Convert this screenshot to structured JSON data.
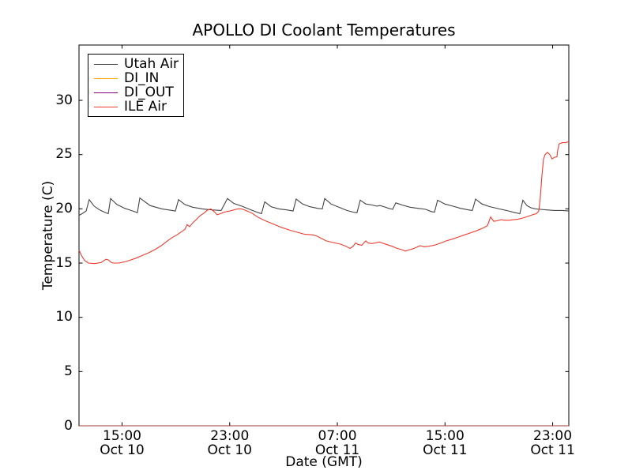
{
  "figure": {
    "background": "#ffffff",
    "spine_color": "#000000",
    "text_color": "#000000"
  },
  "chart_data": {
    "type": "line",
    "title": "APOLLO DI Coolant Temperatures",
    "xlabel": "Date (GMT)",
    "ylabel": "Temperature (C)",
    "grid": false,
    "legend_position": "upper left",
    "x_unit": "hours since Oct 10 00:00 GMT",
    "xlim": [
      11.8,
      48.2
    ],
    "ylim": [
      0,
      35.1
    ],
    "yticks": [
      0,
      5,
      10,
      15,
      20,
      25,
      30
    ],
    "xticks": [
      {
        "value": 15,
        "time": "15:00",
        "date": "Oct 10"
      },
      {
        "value": 23,
        "time": "23:00",
        "date": "Oct 10"
      },
      {
        "value": 31,
        "time": "07:00",
        "date": "Oct 11"
      },
      {
        "value": 39,
        "time": "15:00",
        "date": "Oct 11"
      },
      {
        "value": 47,
        "time": "23:00",
        "date": "Oct 11"
      }
    ],
    "series": [
      {
        "name": "Utah Air",
        "color": "#444444",
        "opacity": 1,
        "points": [
          [
            11.8,
            19.4
          ],
          [
            12.03,
            19.55
          ],
          [
            12.33,
            19.8
          ],
          [
            12.56,
            20.85
          ],
          [
            12.92,
            20.25
          ],
          [
            13.33,
            19.9
          ],
          [
            13.68,
            19.7
          ],
          [
            13.97,
            19.55
          ],
          [
            14.15,
            20.95
          ],
          [
            14.62,
            20.4
          ],
          [
            15.2,
            20.05
          ],
          [
            15.67,
            19.85
          ],
          [
            16.03,
            19.7
          ],
          [
            16.14,
            19.65
          ],
          [
            16.32,
            21.0
          ],
          [
            17.08,
            20.3
          ],
          [
            17.96,
            20.0
          ],
          [
            18.73,
            19.85
          ],
          [
            18.96,
            19.8
          ],
          [
            19.2,
            20.85
          ],
          [
            19.67,
            20.4
          ],
          [
            20.25,
            20.15
          ],
          [
            20.96,
            20.0
          ],
          [
            21.66,
            19.9
          ],
          [
            22.36,
            19.85
          ],
          [
            22.83,
            20.95
          ],
          [
            23.31,
            20.5
          ],
          [
            23.89,
            20.25
          ],
          [
            24.48,
            19.95
          ],
          [
            25.01,
            19.7
          ],
          [
            25.36,
            19.55
          ],
          [
            25.6,
            20.65
          ],
          [
            26.07,
            20.2
          ],
          [
            26.65,
            20.0
          ],
          [
            27.24,
            19.9
          ],
          [
            27.71,
            19.8
          ],
          [
            27.94,
            20.9
          ],
          [
            28.41,
            20.45
          ],
          [
            28.94,
            20.2
          ],
          [
            29.53,
            20.05
          ],
          [
            29.88,
            20.0
          ],
          [
            30.06,
            20.95
          ],
          [
            30.53,
            20.45
          ],
          [
            31.11,
            20.15
          ],
          [
            31.7,
            19.85
          ],
          [
            32.17,
            19.7
          ],
          [
            32.46,
            19.65
          ],
          [
            32.7,
            20.8
          ],
          [
            33.11,
            20.45
          ],
          [
            33.58,
            20.35
          ],
          [
            33.93,
            20.25
          ],
          [
            34.17,
            20.3
          ],
          [
            34.46,
            20.2
          ],
          [
            34.81,
            20.05
          ],
          [
            35.11,
            19.95
          ],
          [
            35.34,
            20.55
          ],
          [
            35.81,
            20.35
          ],
          [
            36.4,
            20.15
          ],
          [
            36.98,
            20.05
          ],
          [
            37.57,
            19.95
          ],
          [
            37.98,
            19.75
          ],
          [
            38.22,
            19.7
          ],
          [
            38.45,
            20.8
          ],
          [
            38.98,
            20.45
          ],
          [
            39.57,
            20.25
          ],
          [
            40.15,
            20.05
          ],
          [
            40.74,
            19.9
          ],
          [
            41.03,
            19.85
          ],
          [
            41.27,
            20.9
          ],
          [
            41.74,
            20.45
          ],
          [
            42.33,
            20.2
          ],
          [
            43.03,
            20.0
          ],
          [
            43.73,
            19.8
          ],
          [
            44.21,
            19.65
          ],
          [
            44.56,
            19.55
          ],
          [
            44.79,
            20.8
          ],
          [
            45.08,
            20.3
          ],
          [
            45.38,
            20.1
          ],
          [
            45.73,
            20.0
          ],
          [
            46.08,
            19.95
          ],
          [
            46.55,
            19.9
          ],
          [
            47.14,
            19.85
          ],
          [
            47.73,
            19.85
          ],
          [
            48.2,
            19.8
          ]
        ]
      },
      {
        "name": "DI_IN",
        "color": "#ffa500",
        "opacity": 0.8,
        "points": [
          [
            11.8,
            0
          ],
          [
            48.2,
            0
          ]
        ]
      },
      {
        "name": "DI_OUT",
        "color": "#800080",
        "opacity": 0.5,
        "points": [
          [
            11.8,
            0
          ],
          [
            48.2,
            0
          ]
        ]
      },
      {
        "name": "ILE Air",
        "color": "#ee3b30",
        "opacity": 1,
        "points": [
          [
            11.8,
            16.2
          ],
          [
            11.98,
            15.7
          ],
          [
            12.21,
            15.25
          ],
          [
            12.5,
            15.0
          ],
          [
            12.97,
            14.95
          ],
          [
            13.44,
            15.05
          ],
          [
            13.8,
            15.35
          ],
          [
            13.97,
            15.3
          ],
          [
            14.21,
            15.05
          ],
          [
            14.38,
            15.0
          ],
          [
            14.74,
            15.0
          ],
          [
            15.15,
            15.1
          ],
          [
            15.56,
            15.25
          ],
          [
            16.03,
            15.45
          ],
          [
            16.5,
            15.7
          ],
          [
            16.97,
            15.95
          ],
          [
            17.44,
            16.25
          ],
          [
            17.91,
            16.6
          ],
          [
            18.32,
            17.0
          ],
          [
            18.73,
            17.35
          ],
          [
            19.08,
            17.6
          ],
          [
            19.37,
            17.85
          ],
          [
            19.67,
            18.1
          ],
          [
            19.84,
            18.55
          ],
          [
            20.02,
            18.35
          ],
          [
            20.25,
            18.7
          ],
          [
            20.55,
            19.05
          ],
          [
            20.78,
            19.35
          ],
          [
            21.08,
            19.6
          ],
          [
            21.31,
            19.85
          ],
          [
            21.6,
            20.0
          ],
          [
            21.84,
            19.75
          ],
          [
            22.07,
            19.45
          ],
          [
            22.31,
            19.55
          ],
          [
            22.6,
            19.7
          ],
          [
            23.01,
            19.8
          ],
          [
            23.31,
            19.9
          ],
          [
            23.6,
            20.0
          ],
          [
            23.89,
            20.0
          ],
          [
            24.19,
            19.85
          ],
          [
            24.66,
            19.6
          ],
          [
            25.07,
            19.25
          ],
          [
            25.65,
            18.9
          ],
          [
            26.24,
            18.6
          ],
          [
            26.83,
            18.3
          ],
          [
            27.42,
            18.05
          ],
          [
            28.0,
            17.85
          ],
          [
            28.59,
            17.65
          ],
          [
            29.18,
            17.6
          ],
          [
            29.47,
            17.5
          ],
          [
            29.76,
            17.3
          ],
          [
            30.17,
            17.05
          ],
          [
            30.64,
            16.9
          ],
          [
            31.23,
            16.75
          ],
          [
            31.64,
            16.55
          ],
          [
            31.94,
            16.35
          ],
          [
            32.17,
            16.55
          ],
          [
            32.35,
            16.85
          ],
          [
            32.58,
            16.7
          ],
          [
            32.82,
            16.65
          ],
          [
            33.11,
            17.05
          ],
          [
            33.29,
            16.85
          ],
          [
            33.52,
            16.8
          ],
          [
            33.82,
            16.85
          ],
          [
            34.11,
            16.95
          ],
          [
            34.34,
            16.85
          ],
          [
            34.7,
            16.7
          ],
          [
            35.05,
            16.55
          ],
          [
            35.46,
            16.35
          ],
          [
            35.87,
            16.2
          ],
          [
            36.04,
            16.1
          ],
          [
            36.28,
            16.2
          ],
          [
            36.57,
            16.3
          ],
          [
            36.87,
            16.45
          ],
          [
            37.16,
            16.6
          ],
          [
            37.45,
            16.5
          ],
          [
            37.8,
            16.55
          ],
          [
            38.22,
            16.65
          ],
          [
            38.69,
            16.85
          ],
          [
            39.1,
            17.05
          ],
          [
            39.51,
            17.2
          ],
          [
            39.98,
            17.4
          ],
          [
            40.45,
            17.6
          ],
          [
            40.92,
            17.8
          ],
          [
            41.39,
            18.0
          ],
          [
            41.86,
            18.25
          ],
          [
            42.15,
            18.45
          ],
          [
            42.39,
            19.25
          ],
          [
            42.62,
            18.85
          ],
          [
            42.86,
            18.9
          ],
          [
            43.15,
            19.0
          ],
          [
            43.44,
            18.95
          ],
          [
            43.79,
            18.95
          ],
          [
            44.09,
            19.0
          ],
          [
            44.44,
            19.05
          ],
          [
            44.79,
            19.15
          ],
          [
            45.14,
            19.3
          ],
          [
            45.5,
            19.45
          ],
          [
            45.79,
            19.55
          ],
          [
            45.97,
            19.8
          ],
          [
            46.08,
            21.0
          ],
          [
            46.2,
            23.0
          ],
          [
            46.32,
            24.6
          ],
          [
            46.44,
            25.0
          ],
          [
            46.61,
            25.2
          ],
          [
            46.79,
            25.0
          ],
          [
            46.96,
            24.6
          ],
          [
            47.14,
            24.75
          ],
          [
            47.32,
            24.8
          ],
          [
            47.37,
            25.4
          ],
          [
            47.49,
            26.0
          ],
          [
            47.73,
            26.1
          ],
          [
            47.96,
            26.1
          ],
          [
            48.2,
            26.2
          ]
        ]
      }
    ]
  }
}
